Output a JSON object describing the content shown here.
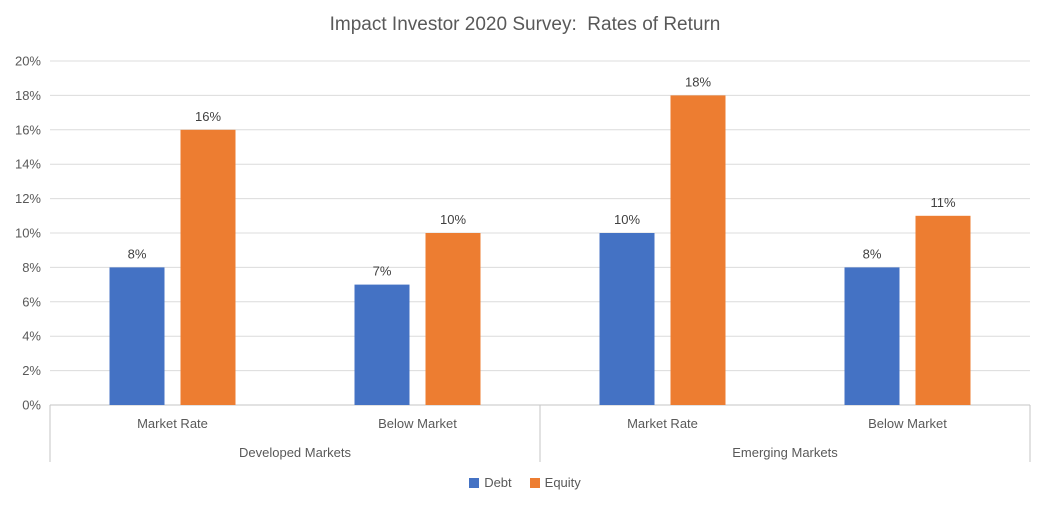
{
  "chart_data": {
    "type": "bar",
    "title": "Impact Investor 2020 Survey:  Rates of Return",
    "xlabel": "",
    "ylabel": "",
    "grid": true,
    "legend_position": "bottom",
    "y_axis": {
      "min": 0,
      "max": 20,
      "step": 2,
      "unit": "%",
      "tick_labels": [
        "0%",
        "2%",
        "4%",
        "6%",
        "8%",
        "10%",
        "12%",
        "14%",
        "16%",
        "18%",
        "20%"
      ]
    },
    "groups": [
      {
        "label": "Developed Markets",
        "categories": [
          "Market Rate",
          "Below Market"
        ]
      },
      {
        "label": "Emerging Markets",
        "categories": [
          "Market Rate",
          "Below Market"
        ]
      }
    ],
    "series": [
      {
        "name": "Debt",
        "color": "#4472C4",
        "values": [
          8,
          7,
          10,
          8
        ],
        "data_labels": [
          "8%",
          "7%",
          "10%",
          "8%"
        ]
      },
      {
        "name": "Equity",
        "color": "#ED7D31",
        "values": [
          16,
          10,
          18,
          11
        ],
        "data_labels": [
          "16%",
          "10%",
          "18%",
          "11%"
        ]
      }
    ],
    "colors": {
      "title_text": "#595959",
      "axis_text": "#595959",
      "data_label_text": "#404040",
      "gridline": "#DCDCDC",
      "axis_line": "#C6C6C6"
    }
  }
}
